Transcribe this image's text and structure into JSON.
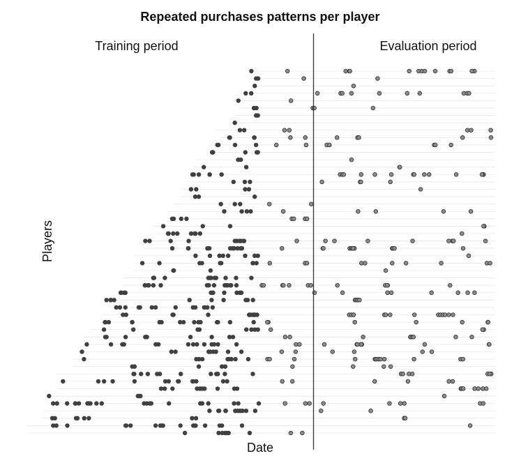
{
  "chart_data": {
    "type": "scatter",
    "title": "Repeated purchases patterns per player",
    "xlabel": "Date",
    "ylabel": "Players",
    "period_labels": {
      "training": "Training period",
      "evaluation": "Evaluation period"
    },
    "x_tick_labels": [],
    "y_tick_labels": [],
    "grid": "horizontal lines per player",
    "legend": "none",
    "colors": {
      "training_points": "#404040",
      "evaluation_points": "#8c8c8c",
      "evaluation_point_outline": "#3a3a3a",
      "gridline": "#e6e6e6",
      "divider": "#333333",
      "text": "#111111"
    },
    "notes": "Each row is one player; points are purchase times. Vertical line separates training period from evaluation period. Axes carry no tick labels, so values are relative time units (0 = earliest date, 100 = end of evaluation period, 50 = start of evaluation period)."
  }
}
